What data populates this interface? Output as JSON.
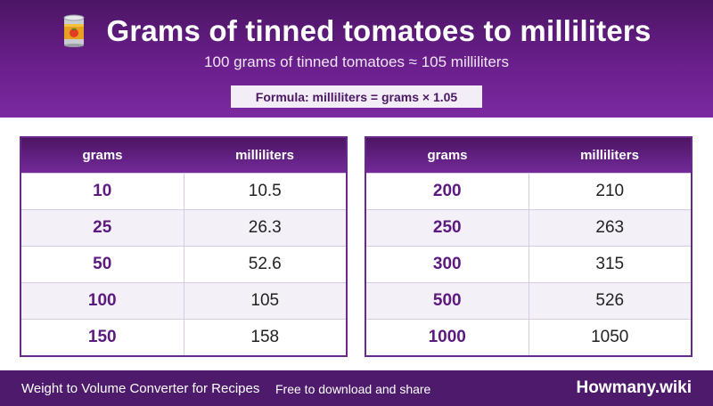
{
  "header": {
    "title": "Grams of tinned tomatoes to milliliters",
    "subtitle": "100 grams of tinned tomatoes ≈ 105 milliliters",
    "formula": "Formula: milliliters = grams × 1.05",
    "icon": "tin-can-icon"
  },
  "tables": [
    {
      "headers": [
        "grams",
        "milliliters"
      ],
      "rows": [
        [
          "10",
          "10.5"
        ],
        [
          "25",
          "26.3"
        ],
        [
          "50",
          "52.6"
        ],
        [
          "100",
          "105"
        ],
        [
          "150",
          "158"
        ]
      ]
    },
    {
      "headers": [
        "grams",
        "milliliters"
      ],
      "rows": [
        [
          "200",
          "210"
        ],
        [
          "250",
          "263"
        ],
        [
          "300",
          "315"
        ],
        [
          "500",
          "526"
        ],
        [
          "1000",
          "1050"
        ]
      ]
    }
  ],
  "footer": {
    "left": "Weight to Volume Converter for Recipes",
    "middle": "Free to download and share",
    "brand": "Howmany.wiki"
  },
  "colors": {
    "accent": "#6a1f8c",
    "header_dark": "#4c1564",
    "footer": "#4e1a6c",
    "gram_text": "#5a1a7e"
  }
}
